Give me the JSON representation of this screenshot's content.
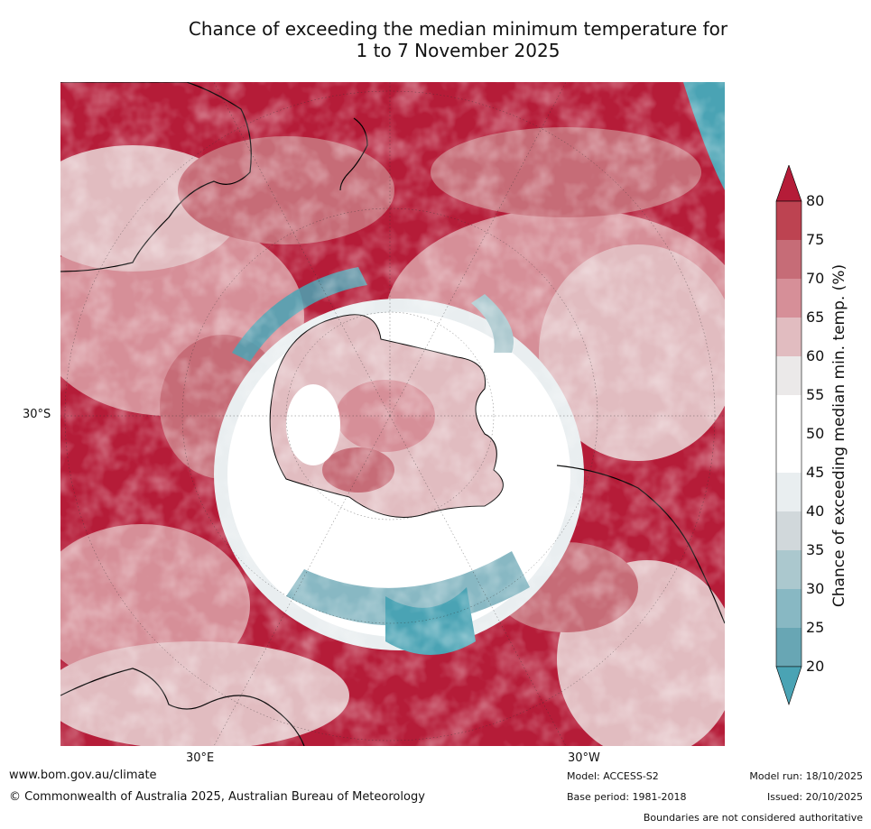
{
  "title_line1": "Chance of exceeding the median minimum temperature for",
  "title_line2": "1 to 7 November 2025",
  "axis_labels": {
    "lat": "30°S",
    "lon_left": "30°E",
    "lon_right": "30°W"
  },
  "colorbar": {
    "label": "Chance of exceeding median min. temp. (%)",
    "ticks": [
      "20",
      "25",
      "30",
      "35",
      "40",
      "45",
      "50",
      "55",
      "60",
      "65",
      "70",
      "75",
      "80"
    ],
    "bins": [
      {
        "range": "20-25",
        "color": "#68a6b4"
      },
      {
        "range": "25-30",
        "color": "#88b8c3"
      },
      {
        "range": "30-35",
        "color": "#abc8ce"
      },
      {
        "range": "35-40",
        "color": "#d1d8db"
      },
      {
        "range": "40-45",
        "color": "#e9eef0"
      },
      {
        "range": "45-50",
        "color": "#ffffff"
      },
      {
        "range": "50-55",
        "color": "#ffffff"
      },
      {
        "range": "55-60",
        "color": "#ebe9e9"
      },
      {
        "range": "60-65",
        "color": "#e1bcc0"
      },
      {
        "range": "65-70",
        "color": "#d68f98"
      },
      {
        "range": "70-75",
        "color": "#c66c77"
      },
      {
        "range": "75-80",
        "color": "#bd4351"
      }
    ],
    "low_extend_color": "#4aa3b4",
    "high_extend_color": "#b51c38"
  },
  "footer": {
    "url": "www.bom.gov.au/climate",
    "copyright": "© Commonwealth of Australia 2025, Australian Bureau of Meteorology",
    "model": "Model: ACCESS-S2",
    "base_period": "Base period: 1981-2018",
    "model_run": "Model run: 18/10/2025",
    "issued": "Issued: 20/10/2025",
    "disclaimer": "Boundaries are not considered authoritative"
  }
}
